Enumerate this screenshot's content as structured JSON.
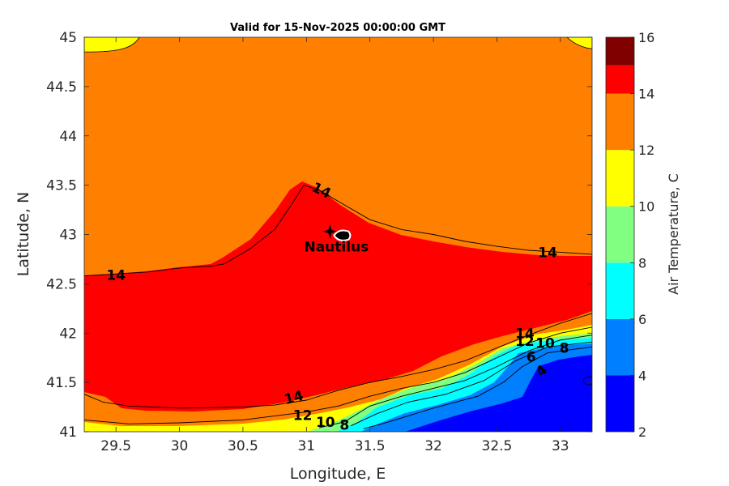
{
  "chart_data": {
    "type": "contour",
    "title": "Valid for 15-Nov-2025 00:00:00 GMT",
    "xlabel": "Longitude, E",
    "ylabel": "Latitude, N",
    "xlim": [
      29.25,
      33.25
    ],
    "ylim": [
      41,
      45
    ],
    "x_ticks": [
      "29.5",
      "30",
      "30.5",
      "31",
      "31.5",
      "32",
      "32.5",
      "33"
    ],
    "y_ticks": [
      "41",
      "41.5",
      "42",
      "42.5",
      "43",
      "43.5",
      "44",
      "44.5",
      "45"
    ],
    "colorbar": {
      "label": "Air Temperature, C",
      "range": [
        2,
        16
      ],
      "ticks": [
        "2",
        "4",
        "6",
        "8",
        "10",
        "12",
        "14",
        "16"
      ],
      "levels": [
        {
          "from": 2,
          "to": 4,
          "color": "#0000ff"
        },
        {
          "from": 4,
          "to": 6,
          "color": "#0080ff"
        },
        {
          "from": 6,
          "to": 8,
          "color": "#00ffff"
        },
        {
          "from": 8,
          "to": 10,
          "color": "#80ff80"
        },
        {
          "from": 10,
          "to": 12,
          "color": "#ffff00"
        },
        {
          "from": 12,
          "to": 14,
          "color": "#ff8000"
        },
        {
          "from": 14,
          "to": 15,
          "color": "#ff0000"
        },
        {
          "from": 15,
          "to": 16,
          "color": "#800000"
        }
      ]
    },
    "contour_lines": [
      {
        "level": 14,
        "points": [
          [
            29.25,
            42.58
          ],
          [
            29.5,
            42.6
          ],
          [
            29.75,
            42.62
          ],
          [
            30,
            42.66
          ],
          [
            30.25,
            42.68
          ],
          [
            30.35,
            42.7
          ],
          [
            30.55,
            42.85
          ],
          [
            30.75,
            43.05
          ],
          [
            30.88,
            43.3
          ],
          [
            30.98,
            43.5
          ],
          [
            31.1,
            43.45
          ],
          [
            31.3,
            43.3
          ],
          [
            31.5,
            43.15
          ],
          [
            31.75,
            43.05
          ],
          [
            32,
            43
          ],
          [
            32.25,
            42.93
          ],
          [
            32.5,
            42.88
          ],
          [
            32.75,
            42.84
          ],
          [
            33,
            42.82
          ],
          [
            33.25,
            42.8
          ]
        ]
      },
      {
        "level": 14,
        "points": [
          [
            29.25,
            41.38
          ],
          [
            29.4,
            41.3
          ],
          [
            29.6,
            41.26
          ],
          [
            30,
            41.24
          ],
          [
            30.5,
            41.25
          ],
          [
            30.75,
            41.27
          ],
          [
            31,
            41.32
          ],
          [
            31.25,
            41.42
          ],
          [
            31.5,
            41.5
          ],
          [
            31.75,
            41.56
          ],
          [
            32,
            41.63
          ],
          [
            32.25,
            41.72
          ],
          [
            32.5,
            41.85
          ],
          [
            32.75,
            41.98
          ],
          [
            33,
            42.1
          ],
          [
            33.25,
            42.2
          ]
        ]
      },
      {
        "level": 12,
        "points": [
          [
            29.25,
            41.12
          ],
          [
            29.6,
            41.08
          ],
          [
            30,
            41.09
          ],
          [
            30.5,
            41.12
          ],
          [
            31,
            41.2
          ],
          [
            31.25,
            41.26
          ],
          [
            31.5,
            41.36
          ],
          [
            31.75,
            41.44
          ],
          [
            32,
            41.5
          ],
          [
            32.25,
            41.6
          ],
          [
            32.5,
            41.75
          ],
          [
            32.75,
            41.9
          ],
          [
            33,
            42
          ],
          [
            33.25,
            42.06
          ]
        ]
      },
      {
        "level": 10,
        "points": [
          [
            31.1,
            41.04
          ],
          [
            31.3,
            41.1
          ],
          [
            31.5,
            41.26
          ],
          [
            31.75,
            41.36
          ],
          [
            32,
            41.44
          ],
          [
            32.25,
            41.52
          ],
          [
            32.5,
            41.66
          ],
          [
            32.75,
            41.82
          ],
          [
            33,
            41.93
          ],
          [
            33.25,
            41.98
          ]
        ]
      },
      {
        "level": 8,
        "points": [
          [
            31.35,
            41.06
          ],
          [
            31.55,
            41.18
          ],
          [
            31.8,
            41.3
          ],
          [
            32.1,
            41.38
          ],
          [
            32.4,
            41.52
          ],
          [
            32.65,
            41.72
          ],
          [
            32.9,
            41.86
          ],
          [
            33.25,
            41.91
          ]
        ]
      },
      {
        "level": 6,
        "points": [
          [
            31.45,
            41.03
          ],
          [
            31.65,
            41.1
          ],
          [
            32,
            41.24
          ],
          [
            32.35,
            41.36
          ],
          [
            32.55,
            41.5
          ],
          [
            32.7,
            41.66
          ],
          [
            32.9,
            41.8
          ],
          [
            33.25,
            41.86
          ]
        ]
      }
    ],
    "contour_labels": [
      {
        "text": "14",
        "x": 29.5,
        "y": 42.59,
        "angle": 0
      },
      {
        "text": "14",
        "x": 31.12,
        "y": 43.45,
        "angle": 25
      },
      {
        "text": "14",
        "x": 32.9,
        "y": 42.82,
        "angle": 0
      },
      {
        "text": "14",
        "x": 30.9,
        "y": 41.35,
        "angle": -15
      },
      {
        "text": "12",
        "x": 30.97,
        "y": 41.17,
        "angle": 0
      },
      {
        "text": "10",
        "x": 31.15,
        "y": 41.1,
        "angle": 0
      },
      {
        "text": "8",
        "x": 31.3,
        "y": 41.07,
        "angle": 0
      },
      {
        "text": "14",
        "x": 32.72,
        "y": 42,
        "angle": 0
      },
      {
        "text": "12",
        "x": 32.72,
        "y": 41.92,
        "angle": 0
      },
      {
        "text": "10",
        "x": 32.88,
        "y": 41.9,
        "angle": 0
      },
      {
        "text": "8",
        "x": 33.03,
        "y": 41.85,
        "angle": 0
      },
      {
        "text": "6",
        "x": 32.77,
        "y": 41.76,
        "angle": 0
      },
      {
        "text": "4",
        "x": 32.85,
        "y": 41.62,
        "angle": -40
      }
    ],
    "station": {
      "name": "Nautilus",
      "lon": 31.23,
      "lat": 42.99
    }
  }
}
